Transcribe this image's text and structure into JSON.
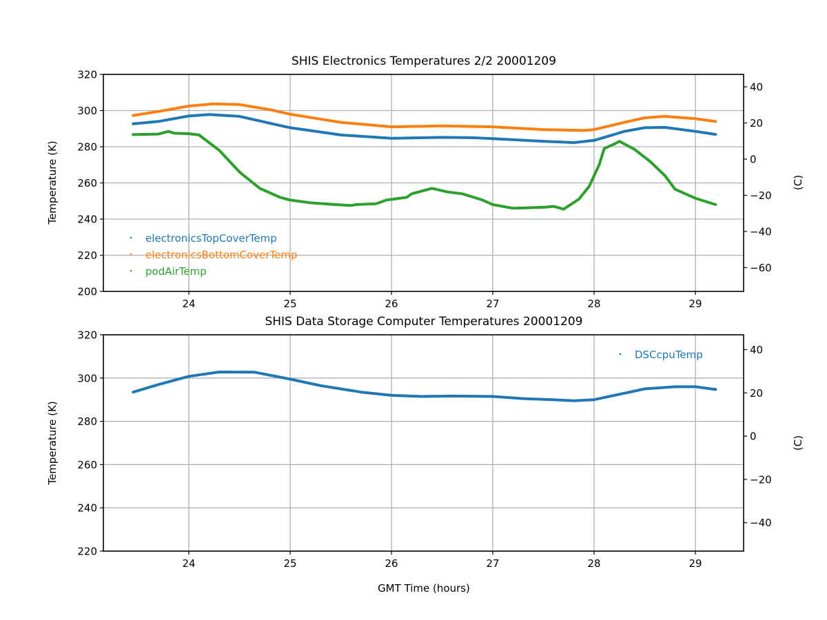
{
  "chart_data": [
    {
      "type": "line",
      "title": "SHIS Electronics Temperatures 2/2 20001209",
      "xlabel": "",
      "ylabel": "Temperature (K)",
      "ylabel_right": "(C)",
      "xlim": [
        23.156,
        29.476
      ],
      "ylim": [
        200,
        320
      ],
      "ylim_right": [
        -73.15,
        46.85
      ],
      "grid": true,
      "legend_position": "lower-left",
      "x_ticks": [
        "24",
        "25",
        "26",
        "27",
        "28",
        "29"
      ],
      "x_tick_values": [
        24,
        25,
        26,
        27,
        28,
        29
      ],
      "y_ticks": [
        "200",
        "220",
        "240",
        "260",
        "280",
        "300",
        "320"
      ],
      "y_tick_values": [
        200,
        220,
        240,
        260,
        280,
        300,
        320
      ],
      "y_ticks_right": [
        "−60",
        "−40",
        "−20",
        "0",
        "20",
        "40"
      ],
      "y_tick_values_right": [
        -60,
        -40,
        -20,
        0,
        20,
        40
      ],
      "series": [
        {
          "name": "electronicsTopCoverTemp",
          "color": "#1f77b4",
          "x": [
            23.45,
            23.7,
            24.0,
            24.2,
            24.5,
            24.8,
            25.0,
            25.5,
            26.0,
            26.5,
            26.8,
            27.0,
            27.5,
            27.8,
            28.0,
            28.3,
            28.5,
            28.7,
            29.0,
            29.2
          ],
          "y": [
            292.7,
            294,
            297,
            297.8,
            296.8,
            293,
            290.5,
            286.5,
            284.7,
            285.2,
            285,
            284.5,
            283,
            282.3,
            283.5,
            288.5,
            290.5,
            290.7,
            288.5,
            286.8
          ]
        },
        {
          "name": "electronicsBottomCoverTemp",
          "color": "#ff7f0e",
          "x": [
            23.45,
            23.7,
            24.0,
            24.25,
            24.5,
            24.8,
            25.0,
            25.5,
            26.0,
            26.5,
            27.0,
            27.5,
            27.9,
            28.0,
            28.3,
            28.5,
            28.7,
            29.0,
            29.2
          ],
          "y": [
            297.3,
            299.5,
            302.5,
            303.7,
            303.3,
            300.5,
            298,
            293.5,
            291,
            291.5,
            291,
            289.5,
            289,
            289.5,
            293.5,
            296,
            296.8,
            295.5,
            294
          ]
        },
        {
          "name": "podAirTemp",
          "color": "#2ca02c",
          "x": [
            23.45,
            23.7,
            23.8,
            23.85,
            24.0,
            24.1,
            24.3,
            24.5,
            24.7,
            24.9,
            25.0,
            25.2,
            25.45,
            25.6,
            25.65,
            25.85,
            25.95,
            26.15,
            26.2,
            26.4,
            26.55,
            26.7,
            26.9,
            27.0,
            27.2,
            27.5,
            27.6,
            27.7,
            27.85,
            27.95,
            28.05,
            28.1,
            28.2,
            28.25,
            28.4,
            28.55,
            28.7,
            28.8,
            29.0,
            29.2
          ],
          "y": [
            286.7,
            287,
            288.5,
            287.5,
            287.2,
            286.5,
            278,
            266,
            257,
            252,
            250.5,
            249,
            248,
            247.5,
            248,
            248.5,
            250.5,
            252,
            254,
            257,
            255,
            254,
            250.5,
            248,
            246,
            246.5,
            247,
            245.5,
            251,
            258,
            270,
            279,
            281.5,
            283,
            278.5,
            272,
            264,
            256.5,
            251.5,
            248
          ]
        }
      ]
    },
    {
      "type": "line",
      "title": "SHIS Data Storage Computer Temperatures 20001209",
      "xlabel": "GMT Time (hours)",
      "ylabel": "Temperature (K)",
      "ylabel_right": "(C)",
      "xlim": [
        23.156,
        29.476
      ],
      "ylim": [
        220,
        320
      ],
      "ylim_right": [
        -53.15,
        46.85
      ],
      "grid": true,
      "legend_position": "upper-right",
      "x_ticks": [
        "24",
        "25",
        "26",
        "27",
        "28",
        "29"
      ],
      "x_tick_values": [
        24,
        25,
        26,
        27,
        28,
        29
      ],
      "y_ticks": [
        "220",
        "240",
        "260",
        "280",
        "300",
        "320"
      ],
      "y_tick_values": [
        220,
        240,
        260,
        280,
        300,
        320
      ],
      "y_ticks_right": [
        "−40",
        "−20",
        "0",
        "20",
        "40"
      ],
      "y_tick_values_right": [
        -40,
        -20,
        0,
        20,
        40
      ],
      "series": [
        {
          "name": "DSCcpuTemp",
          "color": "#1f77b4",
          "x": [
            23.45,
            23.7,
            24.0,
            24.3,
            24.65,
            25.0,
            25.3,
            25.7,
            26.0,
            26.3,
            26.6,
            27.0,
            27.3,
            27.6,
            27.8,
            28.0,
            28.3,
            28.5,
            28.8,
            29.0,
            29.2
          ],
          "y": [
            293.5,
            297,
            300.8,
            302.8,
            302.7,
            299.5,
            296.5,
            293.5,
            292,
            291.5,
            291.7,
            291.5,
            290.5,
            290,
            289.5,
            290,
            293,
            295,
            296,
            296,
            294.7
          ]
        }
      ]
    }
  ]
}
